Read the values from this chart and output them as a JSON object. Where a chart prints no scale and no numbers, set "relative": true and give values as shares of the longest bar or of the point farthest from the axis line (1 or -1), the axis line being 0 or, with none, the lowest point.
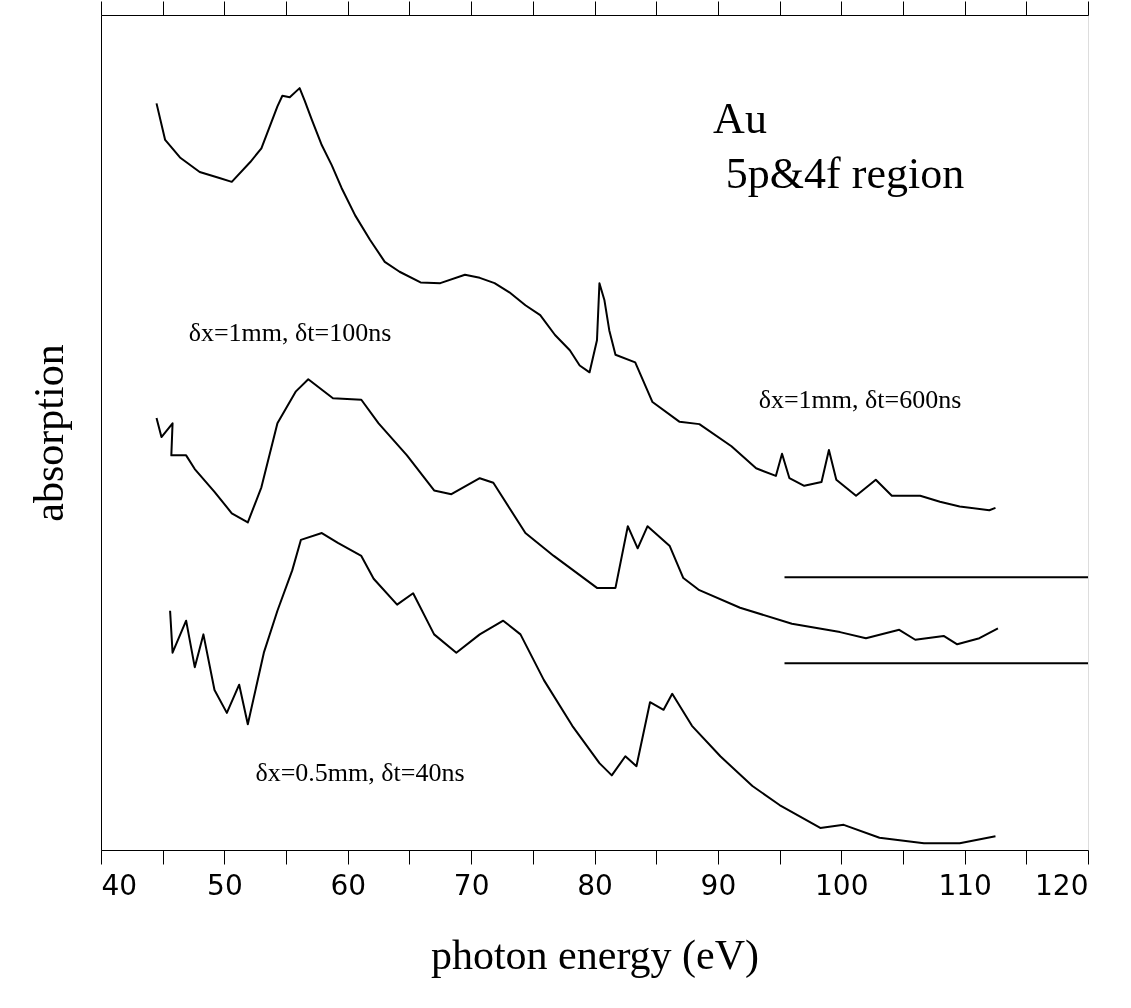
{
  "chart_data": {
    "type": "line",
    "relative": true,
    "xlabel": "photon energy (eV)",
    "ylabel": "absorption",
    "annotations": [
      "Au",
      "5p&4f region"
    ],
    "xlim": [
      40,
      120
    ],
    "xticks": [
      40,
      {
        "value": 45,
        "label": null
      },
      50,
      {
        "value": 55,
        "label": null
      },
      60,
      {
        "value": 65,
        "label": null
      },
      70,
      {
        "value": 75,
        "label": null
      },
      80,
      {
        "value": 85,
        "label": null
      },
      90,
      {
        "value": 95,
        "label": null
      },
      100,
      {
        "value": 105,
        "label": null
      },
      110,
      {
        "value": 115,
        "label": null
      },
      120
    ],
    "tick_labels": "x",
    "grid": false,
    "marker": "none",
    "line_style": "solid",
    "series": [
      {
        "name": "δx=1mm, δt=600ns",
        "color": "#000000",
        "x": [
          44.5,
          45.2,
          46.4,
          48.0,
          49.6,
          50.6,
          52.1,
          53.0,
          54.3,
          54.7,
          55.3,
          56.1,
          56.5,
          57.1,
          57.9,
          58.7,
          59.5,
          60.6,
          61.8,
          63.0,
          64.2,
          65.9,
          67.5,
          69.5,
          70.7,
          71.9,
          73.1,
          74.4,
          75.6,
          76.8,
          78.0,
          78.8,
          79.6,
          80.2,
          80.4,
          80.8,
          81.2,
          81.7,
          83.3,
          84.7,
          86.9,
          88.5,
          91.1,
          93.1,
          94.7,
          95.2,
          95.8,
          97.0,
          98.4,
          99.0,
          99.6,
          101.2,
          102.8,
          104.1,
          106.4,
          108.0,
          109.6,
          112.0,
          112.5
        ],
        "values": [
          0.98,
          0.932,
          0.909,
          0.89,
          0.882,
          0.877,
          0.903,
          0.921,
          0.976,
          0.99,
          0.988,
          1.0,
          0.984,
          0.958,
          0.925,
          0.899,
          0.869,
          0.833,
          0.801,
          0.772,
          0.759,
          0.745,
          0.744,
          0.755,
          0.751,
          0.744,
          0.732,
          0.715,
          0.702,
          0.676,
          0.656,
          0.636,
          0.627,
          0.669,
          0.744,
          0.722,
          0.682,
          0.65,
          0.64,
          0.588,
          0.562,
          0.559,
          0.53,
          0.501,
          0.491,
          0.52,
          0.488,
          0.478,
          0.483,
          0.525,
          0.486,
          0.465,
          0.486,
          0.465,
          0.465,
          0.457,
          0.451,
          0.446,
          0.449
        ]
      },
      {
        "name": "δx=1mm, δt=100ns",
        "color": "#000000",
        "x": [
          44.5,
          44.9,
          45.8,
          45.7,
          46.9,
          47.6,
          49.2,
          50.6,
          51.9,
          53.0,
          54.3,
          55.8,
          56.8,
          58.8,
          61.1,
          62.5,
          64.8,
          67.0,
          68.4,
          70.7,
          71.8,
          74.4,
          76.7,
          80.2,
          81.7,
          82.7,
          83.5,
          84.3,
          86.1,
          87.2,
          88.5,
          91.8,
          96.0,
          99.9,
          102.0,
          104.7,
          106.0,
          108.3,
          109.4,
          111.2,
          112.7
        ],
        "values": [
          0.567,
          0.542,
          0.56,
          0.518,
          0.518,
          0.5,
          0.47,
          0.442,
          0.43,
          0.476,
          0.56,
          0.602,
          0.618,
          0.593,
          0.591,
          0.56,
          0.518,
          0.472,
          0.467,
          0.488,
          0.482,
          0.416,
          0.386,
          0.344,
          0.344,
          0.425,
          0.396,
          0.425,
          0.399,
          0.357,
          0.341,
          0.318,
          0.297,
          0.286,
          0.278,
          0.289,
          0.276,
          0.281,
          0.27,
          0.278,
          0.291
        ]
      },
      {
        "name": "δx=0.5mm, δt=40ns",
        "color": "#000000",
        "x": [
          45.6,
          45.8,
          46.9,
          47.6,
          48.3,
          49.2,
          50.2,
          51.2,
          51.9,
          53.2,
          54.3,
          55.5,
          56.2,
          57.9,
          59.2,
          61.1,
          62.1,
          64.0,
          65.3,
          67.0,
          68.8,
          70.7,
          72.6,
          74.0,
          75.9,
          78.2,
          80.4,
          81.4,
          82.5,
          83.4,
          84.5,
          85.6,
          86.3,
          87.9,
          90.2,
          92.8,
          95.0,
          98.3,
          100.2,
          103.1,
          106.7,
          109.6,
          112.5
        ],
        "values": [
          0.314,
          0.259,
          0.301,
          0.24,
          0.283,
          0.21,
          0.18,
          0.217,
          0.165,
          0.259,
          0.314,
          0.367,
          0.407,
          0.416,
          0.403,
          0.386,
          0.356,
          0.322,
          0.337,
          0.283,
          0.259,
          0.283,
          0.301,
          0.283,
          0.223,
          0.163,
          0.114,
          0.098,
          0.123,
          0.11,
          0.194,
          0.184,
          0.205,
          0.163,
          0.123,
          0.084,
          0.059,
          0.029,
          0.033,
          0.016,
          0.009,
          0.009,
          0.018
        ]
      },
      {
        "color": "#000000",
        "x": [
          95.4,
          120
        ],
        "values": [
          0.358,
          0.358
        ]
      },
      {
        "color": "#000000",
        "x": [
          95.4,
          120
        ],
        "values": [
          0.245,
          0.245
        ]
      }
    ]
  }
}
